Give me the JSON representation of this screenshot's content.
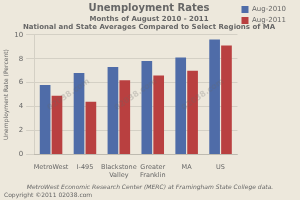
{
  "chart_data": {
    "type": "bar",
    "title": "Unemployment Rates",
    "subtitle": [
      "Months of August 2010 - 2011",
      "National and State Averages Compared to Select Regions of MA"
    ],
    "categories": [
      "MetroWest",
      "I-495",
      "Blackstone\nValley",
      "Greater\nFranklin",
      "MA",
      "US"
    ],
    "series": [
      {
        "name": "Aug-2010",
        "color": "#4F6CA8",
        "values": [
          5.8,
          6.8,
          7.3,
          7.8,
          8.1,
          9.6
        ]
      },
      {
        "name": "Aug-2011",
        "color": "#B94040",
        "values": [
          4.9,
          4.4,
          6.2,
          6.6,
          7.0,
          9.1
        ]
      }
    ],
    "ylabel": "Unemployment Rate (Percent)",
    "ylim": [
      0,
      10
    ],
    "yticks": [
      0,
      2,
      4,
      6,
      8,
      10
    ],
    "grid": true,
    "legend": "right",
    "annotations": [
      "MetroWest Economic Research Center (MERC) at Framingham State College data.",
      "Copyright ©2011 02038.com"
    ],
    "watermark": "02038.com",
    "background_color": "#ede8dc"
  }
}
